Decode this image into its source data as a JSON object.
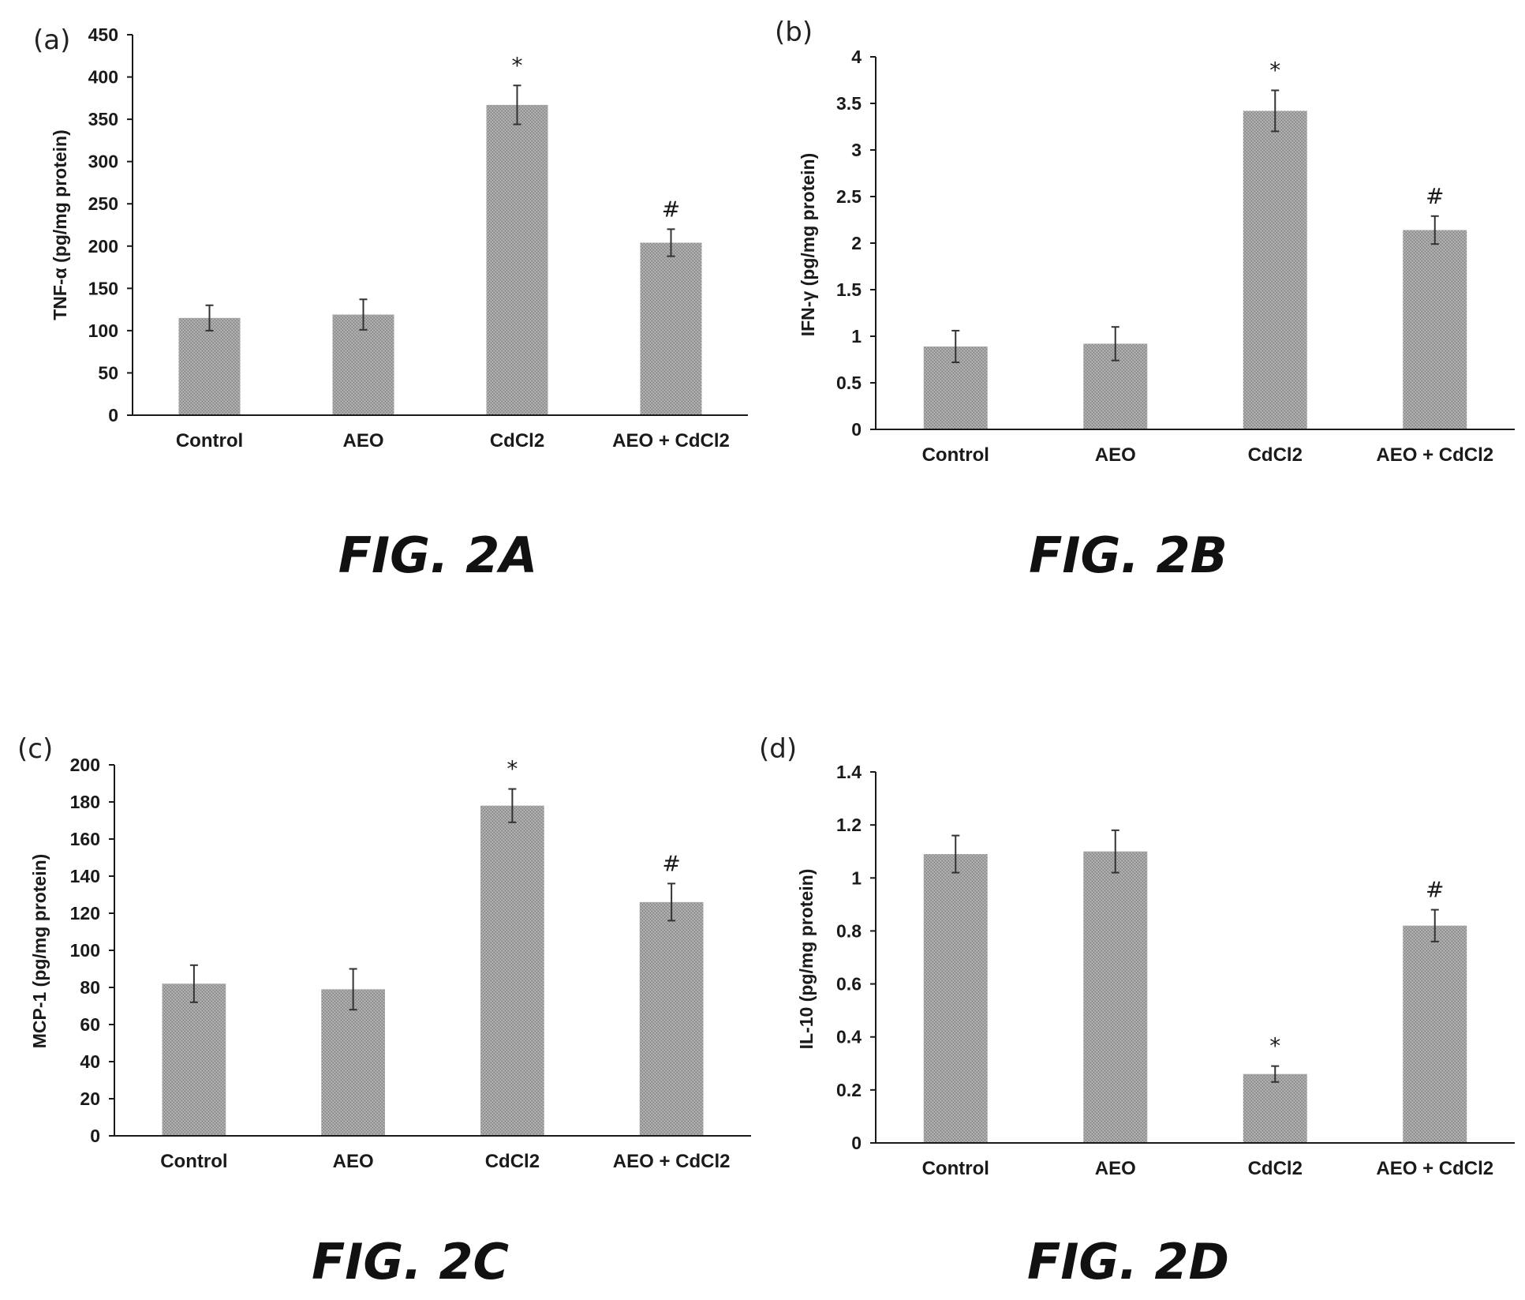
{
  "figures": [
    {
      "panel_label": "(a)",
      "caption": "FIG. 2A",
      "chart_data": {
        "type": "bar",
        "title": "",
        "xlabel": "",
        "ylabel": "TNF-α (pg/mg protein)",
        "categories": [
          "Control",
          "AEO",
          "CdCl2",
          "AEO + CdCl2"
        ],
        "values": [
          115,
          119,
          367,
          204
        ],
        "errors": [
          15,
          18,
          23,
          16
        ],
        "markers": [
          "",
          "",
          "*",
          "#"
        ],
        "ylim": [
          0,
          450
        ],
        "yticks": [
          "0",
          "50",
          "100",
          "150",
          "200",
          "250",
          "300",
          "350",
          "400",
          "450"
        ],
        "grid": false,
        "bar_color": "#9b9b9b"
      }
    },
    {
      "panel_label": "(b)",
      "caption": "FIG. 2B",
      "chart_data": {
        "type": "bar",
        "title": "",
        "xlabel": "",
        "ylabel": "IFN-γ (pg/mg protein)",
        "categories": [
          "Control",
          "AEO",
          "CdCl2",
          "AEO + CdCl2"
        ],
        "values": [
          0.89,
          0.92,
          3.42,
          2.14
        ],
        "errors": [
          0.17,
          0.18,
          0.22,
          0.15
        ],
        "markers": [
          "",
          "",
          "*",
          "#"
        ],
        "ylim": [
          0,
          4
        ],
        "yticks": [
          "0",
          "0.5",
          "1",
          "1.5",
          "2",
          "2.5",
          "3",
          "3.5",
          "4"
        ],
        "grid": false,
        "bar_color": "#9b9b9b"
      }
    },
    {
      "panel_label": "(c)",
      "caption": "FIG. 2C",
      "chart_data": {
        "type": "bar",
        "title": "",
        "xlabel": "",
        "ylabel": "MCP-1 (pg/mg protein)",
        "categories": [
          "Control",
          "AEO",
          "CdCl2",
          "AEO + CdCl2"
        ],
        "values": [
          82,
          79,
          178,
          126
        ],
        "errors": [
          10,
          11,
          9,
          10
        ],
        "markers": [
          "",
          "",
          "*",
          "#"
        ],
        "ylim": [
          0,
          200
        ],
        "yticks": [
          "0",
          "20",
          "40",
          "60",
          "80",
          "100",
          "120",
          "140",
          "160",
          "180",
          "200"
        ],
        "grid": false,
        "bar_color": "#9b9b9b"
      }
    },
    {
      "panel_label": "(d)",
      "caption": "FIG. 2D",
      "chart_data": {
        "type": "bar",
        "title": "",
        "xlabel": "",
        "ylabel": "IL-10 (pg/mg protein)",
        "categories": [
          "Control",
          "AEO",
          "CdCl2",
          "AEO + CdCl2"
        ],
        "values": [
          1.09,
          1.1,
          0.26,
          0.82
        ],
        "errors": [
          0.07,
          0.08,
          0.03,
          0.06
        ],
        "markers": [
          "",
          "",
          "*",
          "#"
        ],
        "ylim": [
          0,
          1.4
        ],
        "yticks": [
          "0",
          "0.2",
          "0.4",
          "0.6",
          "0.8",
          "1",
          "1.2",
          "1.4"
        ],
        "grid": false,
        "bar_color": "#9b9b9b"
      }
    }
  ]
}
